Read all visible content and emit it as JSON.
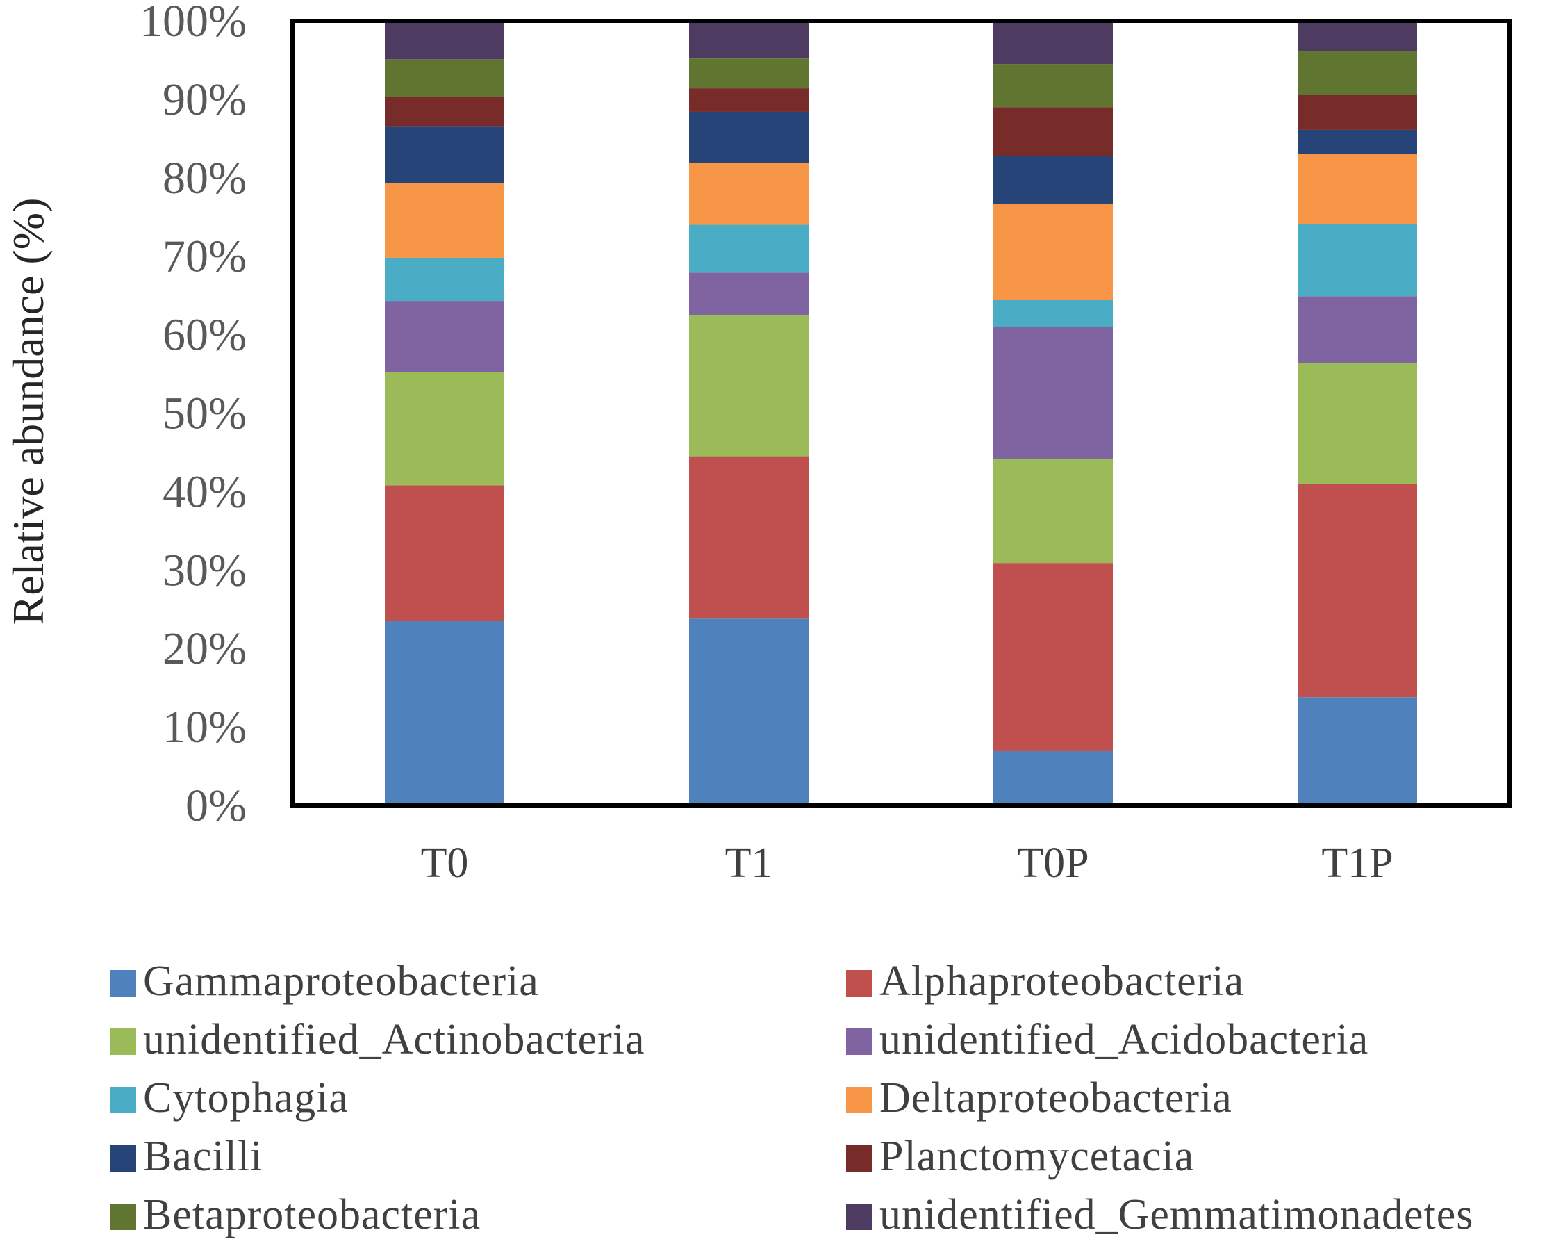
{
  "chart_data": {
    "type": "bar",
    "stacked": true,
    "normalized": true,
    "title": "",
    "xlabel": "",
    "ylabel": "Relative abundance (%)",
    "ylim": [
      0,
      100
    ],
    "yticks": [
      "0%",
      "10%",
      "20%",
      "30%",
      "40%",
      "50%",
      "60%",
      "70%",
      "80%",
      "90%",
      "100%"
    ],
    "categories": [
      "T0",
      "T1",
      "T0P",
      "T1P"
    ],
    "legend_position": "bottom",
    "series": [
      {
        "name": "Gammaproteobacteria",
        "color": "#4f81bd",
        "values": [
          23.5,
          23.8,
          7.0,
          13.8
        ]
      },
      {
        "name": "Alphaproteobacteria",
        "color": "#c0504d",
        "values": [
          17.3,
          20.7,
          23.9,
          27.2
        ]
      },
      {
        "name": "unidentified_Actinobacteria",
        "color": "#9bbb59",
        "values": [
          14.4,
          18.0,
          13.3,
          15.4
        ]
      },
      {
        "name": "unidentified_Acidobacteria",
        "color": "#8064a2",
        "values": [
          9.1,
          5.4,
          16.8,
          8.5
        ]
      },
      {
        "name": "Cytophagia",
        "color": "#4bacc6",
        "values": [
          5.5,
          6.1,
          3.4,
          9.2
        ]
      },
      {
        "name": "Deltaproteobacteria",
        "color": "#f79646",
        "values": [
          9.5,
          7.9,
          12.3,
          8.9
        ]
      },
      {
        "name": "Bacilli",
        "color": "#264478",
        "values": [
          7.2,
          6.5,
          6.1,
          3.1
        ]
      },
      {
        "name": "Planctomycetacia",
        "color": "#772c2a",
        "values": [
          3.8,
          3.0,
          6.2,
          4.5
        ]
      },
      {
        "name": "Betaproteobacteria",
        "color": "#5f7530",
        "values": [
          4.8,
          3.8,
          5.5,
          5.5
        ]
      },
      {
        "name": "unidentified_Gemmatimonadetes",
        "color": "#4d3b62",
        "values": [
          4.9,
          4.8,
          5.5,
          3.9
        ]
      }
    ]
  }
}
